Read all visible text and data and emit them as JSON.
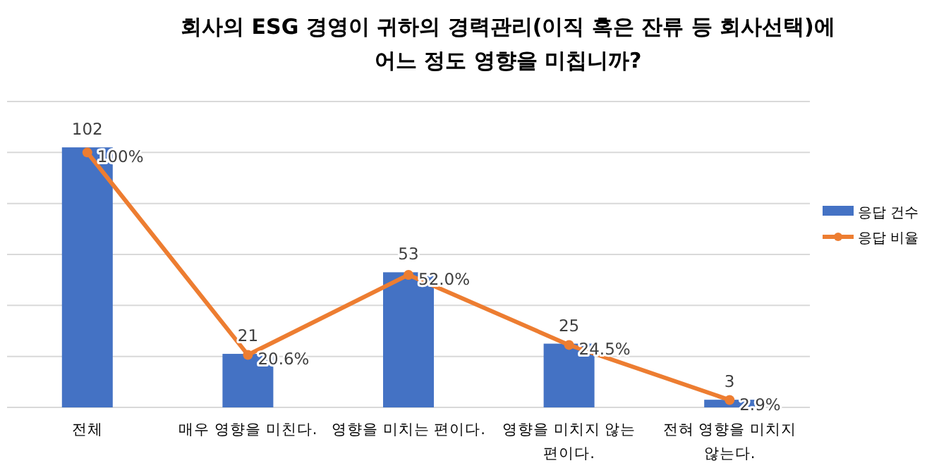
{
  "chart_data": {
    "type": "bar",
    "title": "회사의 ESG 경영이 귀하의 경력관리(이직 혹은 잔류 등 회사선택)에 어느 정도 영향을 미칩니까?",
    "categories": [
      "전체",
      "매우 영향을 미친다.",
      "영향을 미치는 편이다.",
      "영향을 미치지 않는 편이다.",
      "전혀 영향을 미치지 않는다."
    ],
    "series": [
      {
        "name": "응답 건수",
        "color": "#4472c4",
        "values": [
          102,
          21,
          53,
          25,
          3
        ],
        "value_labels": [
          "102",
          "21",
          "53",
          "25",
          "3"
        ]
      },
      {
        "name": "응답 비율",
        "type": "line",
        "color": "#ed7d31",
        "marker": "circle",
        "values": [
          100,
          20.6,
          52.0,
          24.5,
          2.9
        ],
        "value_labels": [
          "100%",
          "20.6%",
          "52.0%",
          "24.5%",
          "2.9%"
        ]
      }
    ],
    "ylim": [
      0,
      120
    ],
    "yticks": [
      {
        "value": 0,
        "label": null
      },
      {
        "value": 20,
        "label": null
      },
      {
        "value": 40,
        "label": null
      },
      {
        "value": 60,
        "label": null
      },
      {
        "value": 80,
        "label": null
      },
      {
        "value": 100,
        "label": null
      },
      {
        "value": 120,
        "label": null
      }
    ],
    "tick_labels": "x",
    "grid": "y",
    "legend": "right"
  }
}
